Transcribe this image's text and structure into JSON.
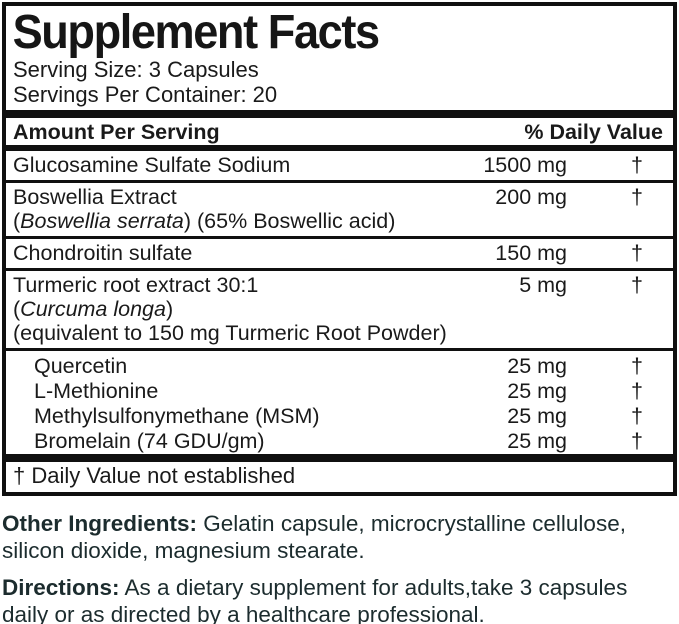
{
  "colors": {
    "rule_black": "#101010",
    "panel_text": "#1a1a1a",
    "footer_text": "#1c2c2e",
    "background": "#ffffff"
  },
  "panel": {
    "title": "Supplement Facts",
    "serving_size": "Serving Size: 3 Capsules",
    "servings_per_container": "Servings Per Container: 20",
    "column_header_left": "Amount Per Serving",
    "column_header_right": "% Daily Value",
    "rows": [
      {
        "rule": false,
        "indent": false,
        "name": [
          {
            "t": "Glucosamine Sulfate Sodium",
            "i": false
          }
        ],
        "amount": "1500 mg",
        "dv": "†",
        "sublines": []
      },
      {
        "rule": true,
        "indent": false,
        "name": [
          {
            "t": "Boswellia Extract",
            "i": false
          }
        ],
        "amount": "200 mg",
        "dv": "†",
        "sublines": [
          [
            {
              "t": "(",
              "i": false
            },
            {
              "t": "Boswellia serrata",
              "i": true
            },
            {
              "t": ") (65% Boswellic acid)",
              "i": false
            }
          ]
        ]
      },
      {
        "rule": true,
        "indent": false,
        "name": [
          {
            "t": "Chondroitin sulfate",
            "i": false
          }
        ],
        "amount": "150 mg",
        "dv": "†",
        "sublines": []
      },
      {
        "rule": true,
        "indent": false,
        "name": [
          {
            "t": "Turmeric root extract 30:1",
            "i": false
          }
        ],
        "amount": "5 mg",
        "dv": "†",
        "sublines": [
          [
            {
              "t": "(",
              "i": false
            },
            {
              "t": "Curcuma longa",
              "i": true
            },
            {
              "t": ")",
              "i": false
            }
          ],
          [
            {
              "t": "(equivalent to 150 mg Turmeric Root Powder)",
              "i": false
            }
          ]
        ]
      },
      {
        "rule": true,
        "indent": true,
        "name": [
          {
            "t": "Quercetin",
            "i": false
          }
        ],
        "amount": "25 mg",
        "dv": "†",
        "sublines": []
      },
      {
        "rule": false,
        "indent": true,
        "name": [
          {
            "t": "L-Methionine",
            "i": false
          }
        ],
        "amount": "25 mg",
        "dv": "†",
        "sublines": []
      },
      {
        "rule": false,
        "indent": true,
        "name": [
          {
            "t": "Methylsulfonymethane (MSM)",
            "i": false
          }
        ],
        "amount": "25 mg",
        "dv": "†",
        "sublines": []
      },
      {
        "rule": false,
        "indent": true,
        "name": [
          {
            "t": "Bromelain (74 GDU/gm)",
            "i": false
          }
        ],
        "amount": "25 mg",
        "dv": "†",
        "sublines": []
      }
    ],
    "footnote": "† Daily Value not established"
  },
  "footer": {
    "other_ingredients_label": "Other Ingredients:",
    "other_ingredients_text": " Gelatin capsule, microcrystalline cellulose, silicon dioxide, magnesium stearate.",
    "directions_label": "Directions:",
    "directions_text": " As a dietary supplement for adults,take 3 capsules daily or as directed by a healthcare professional."
  }
}
